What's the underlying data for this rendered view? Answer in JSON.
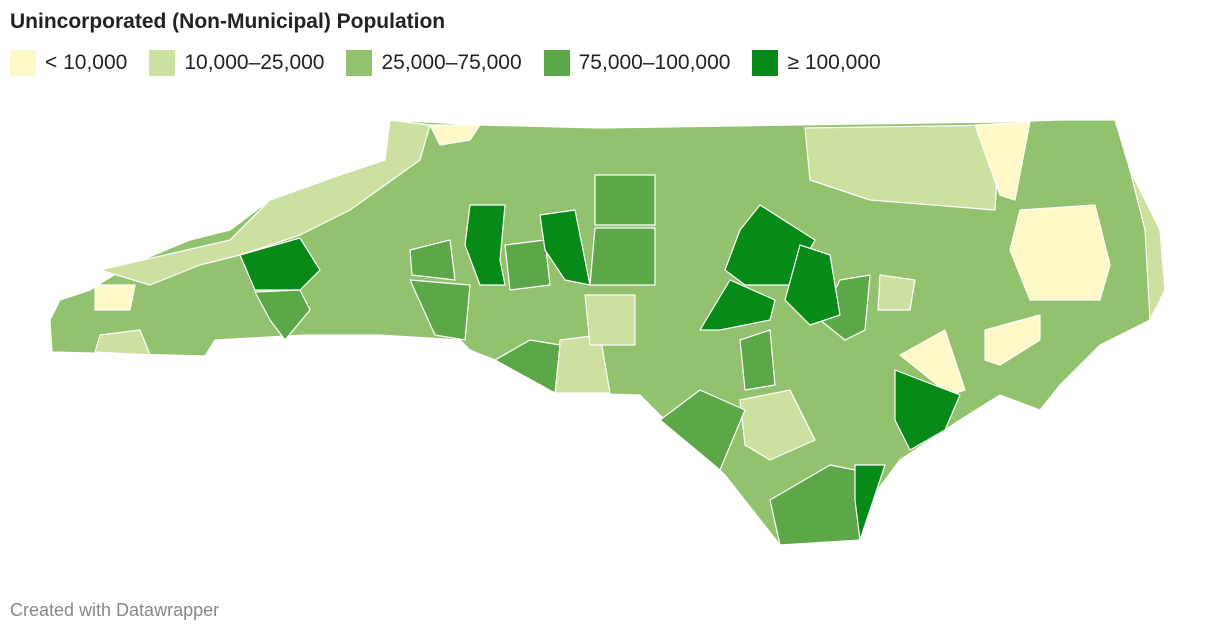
{
  "title": "Unincorporated (Non-Municipal) Population",
  "legend": [
    {
      "label": "< 10,000",
      "color": "#fff9c9"
    },
    {
      "label": "10,000–25,000",
      "color": "#cde0a1"
    },
    {
      "label": "25,000–75,000",
      "color": "#93c26f"
    },
    {
      "label": "75,000–100,000",
      "color": "#5ca848"
    },
    {
      "label": "≥ 100,000",
      "color": "#078a18"
    }
  ],
  "footer": "Created with Datawrapper"
}
